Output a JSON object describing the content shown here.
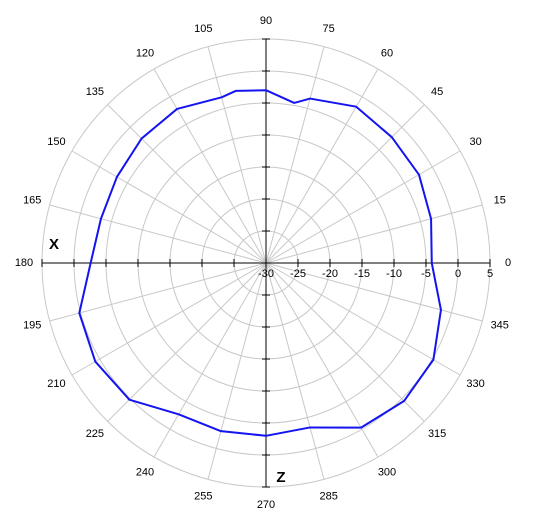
{
  "chart_data": {
    "type": "polar",
    "annotations": [
      "X",
      "Z"
    ],
    "theta": [
      0,
      15,
      30,
      45,
      60,
      75,
      80,
      90,
      100,
      105,
      120,
      135,
      150,
      165,
      180,
      195,
      210,
      225,
      240,
      255,
      270,
      285,
      300,
      315,
      330,
      345
    ],
    "series": [
      {
        "color": "#1414f0",
        "values": [
          -4.1,
          -3.3,
          -2.4,
          -2.2,
          -1.8,
          -3.4,
          -4.6,
          -3.0,
          -2.7,
          -3.2,
          -2.2,
          -2.5,
          -3.1,
          -3.3,
          -2.6,
          0.2,
          0.8,
          0.2,
          -2.7,
          -2.8,
          -3.0,
          -3.4,
          -0.3,
          0.5,
          0.2,
          -1.7
        ]
      }
    ],
    "thetaticks": [
      0,
      15,
      30,
      45,
      60,
      75,
      90,
      105,
      120,
      135,
      150,
      165,
      180,
      195,
      210,
      225,
      240,
      255,
      270,
      285,
      300,
      315,
      330,
      345
    ],
    "rlim": [
      -30,
      5
    ],
    "rticks": [
      -30,
      -25,
      -20,
      -15,
      -10,
      -5,
      0,
      5
    ],
    "grid": true
  }
}
